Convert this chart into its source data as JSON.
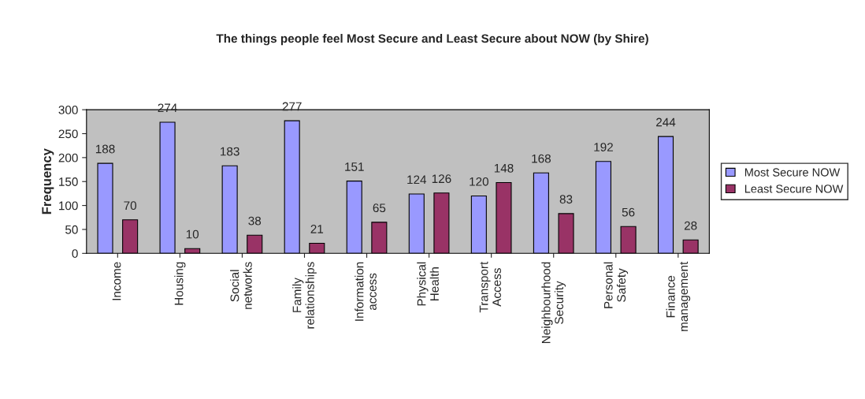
{
  "chart_data": {
    "type": "bar",
    "title": "The things people feel Most Secure and Least Secure about NOW (by Shire)",
    "ylabel": "Frequency",
    "categories": [
      "Income",
      "Housing",
      "Social\nnetworks",
      "Family\nrelationships",
      "Information\naccess",
      "Physical\nHealth",
      "Transport\nAccess",
      "Neighbourhood\nSecurity",
      "Personal\nSafety",
      "Finance\nmanagement"
    ],
    "series": [
      {
        "name": "Most Secure NOW",
        "color": "#9999ff",
        "values": [
          188,
          274,
          183,
          277,
          151,
          124,
          120,
          168,
          192,
          244
        ]
      },
      {
        "name": "Least Secure NOW",
        "color": "#993366",
        "values": [
          70,
          10,
          38,
          21,
          65,
          126,
          148,
          83,
          56,
          28
        ]
      }
    ],
    "ylim": [
      0,
      300
    ],
    "yticks": [
      0,
      50,
      100,
      150,
      200,
      250,
      300
    ],
    "data_labels": true,
    "legend": "right",
    "grid": false
  }
}
